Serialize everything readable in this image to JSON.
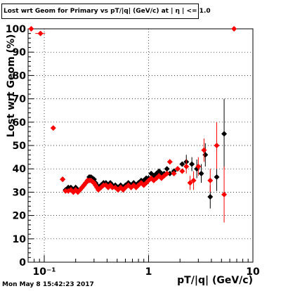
{
  "chart_data": {
    "type": "scatter",
    "title": "Lost wrt Geom for Primary vs pT/|q| (GeV/c) at | η | <= 1.0",
    "xlabel": "pT/|q| (GeV/c)",
    "ylabel": "Lost wrt Geom (%)",
    "x_scale": "log",
    "xlim": [
      0.07,
      10
    ],
    "ylim": [
      0,
      100
    ],
    "x_ticks": [
      0.1,
      1,
      10
    ],
    "x_tick_labels": [
      "10⁻¹",
      "1",
      "10"
    ],
    "y_ticks": [
      0,
      10,
      20,
      30,
      40,
      50,
      60,
      70,
      80,
      90,
      100
    ],
    "y_tick_labels": [
      "0",
      "10",
      "20",
      "30",
      "40",
      "50",
      "60",
      "70",
      "80",
      "90",
      "100"
    ],
    "grid": true,
    "series": [
      {
        "color": "#000000",
        "marker": "diamond",
        "points": [
          {
            "x": 0.15,
            "y": 35.5
          },
          {
            "x": 0.16,
            "y": 31
          },
          {
            "x": 0.17,
            "y": 32
          },
          {
            "x": 0.18,
            "y": 32
          },
          {
            "x": 0.19,
            "y": 31
          },
          {
            "x": 0.2,
            "y": 32
          },
          {
            "x": 0.21,
            "y": 31
          },
          {
            "x": 0.22,
            "y": 31
          },
          {
            "x": 0.23,
            "y": 32
          },
          {
            "x": 0.24,
            "y": 33
          },
          {
            "x": 0.25,
            "y": 34
          },
          {
            "x": 0.26,
            "y": 35
          },
          {
            "x": 0.27,
            "y": 36.5
          },
          {
            "x": 0.28,
            "y": 36.5
          },
          {
            "x": 0.29,
            "y": 36
          },
          {
            "x": 0.3,
            "y": 35.5
          },
          {
            "x": 0.31,
            "y": 34
          },
          {
            "x": 0.32,
            "y": 33
          },
          {
            "x": 0.33,
            "y": 32
          },
          {
            "x": 0.35,
            "y": 33
          },
          {
            "x": 0.37,
            "y": 34
          },
          {
            "x": 0.39,
            "y": 34
          },
          {
            "x": 0.41,
            "y": 33
          },
          {
            "x": 0.43,
            "y": 34
          },
          {
            "x": 0.45,
            "y": 33
          },
          {
            "x": 0.48,
            "y": 33
          },
          {
            "x": 0.51,
            "y": 32
          },
          {
            "x": 0.54,
            "y": 33
          },
          {
            "x": 0.57,
            "y": 32
          },
          {
            "x": 0.6,
            "y": 33
          },
          {
            "x": 0.64,
            "y": 34
          },
          {
            "x": 0.68,
            "y": 33
          },
          {
            "x": 0.72,
            "y": 34
          },
          {
            "x": 0.76,
            "y": 33
          },
          {
            "x": 0.8,
            "y": 34
          },
          {
            "x": 0.85,
            "y": 35
          },
          {
            "x": 0.9,
            "y": 35
          },
          {
            "x": 0.95,
            "y": 36
          },
          {
            "x": 1.0,
            "y": 36
          },
          {
            "x": 1.06,
            "y": 38
          },
          {
            "x": 1.12,
            "y": 37
          },
          {
            "x": 1.19,
            "y": 38
          },
          {
            "x": 1.26,
            "y": 39
          },
          {
            "x": 1.33,
            "y": 38
          },
          {
            "x": 1.41,
            "y": 38
          },
          {
            "x": 1.5,
            "y": 40
          },
          {
            "x": 1.6,
            "y": 38
          },
          {
            "x": 1.75,
            "y": 39
          },
          {
            "x": 1.9,
            "y": 40
          },
          {
            "x": 2.1,
            "y": 42
          },
          {
            "x": 2.3,
            "y": 43,
            "err": 3
          },
          {
            "x": 2.6,
            "y": 42,
            "err": 3
          },
          {
            "x": 2.9,
            "y": 40,
            "err": 4
          },
          {
            "x": 3.2,
            "y": 38,
            "err": 4
          },
          {
            "x": 3.5,
            "y": 46,
            "err": 5
          },
          {
            "x": 3.9,
            "y": 28,
            "err": 5
          },
          {
            "x": 4.5,
            "y": 36.5,
            "err": 6
          },
          {
            "x": 5.3,
            "y": 55,
            "err": 15
          }
        ]
      },
      {
        "color": "#ff0000",
        "marker": "diamond",
        "points": [
          {
            "x": 0.075,
            "y": 100
          },
          {
            "x": 0.092,
            "y": 98,
            "xerr": 0.01
          },
          {
            "x": 0.122,
            "y": 57.5,
            "xerr": 0.007
          },
          {
            "x": 0.15,
            "y": 35.5
          },
          {
            "x": 0.16,
            "y": 30.5
          },
          {
            "x": 0.17,
            "y": 30.5
          },
          {
            "x": 0.18,
            "y": 31
          },
          {
            "x": 0.19,
            "y": 30
          },
          {
            "x": 0.2,
            "y": 31
          },
          {
            "x": 0.21,
            "y": 30
          },
          {
            "x": 0.22,
            "y": 31
          },
          {
            "x": 0.23,
            "y": 32
          },
          {
            "x": 0.24,
            "y": 33
          },
          {
            "x": 0.25,
            "y": 34
          },
          {
            "x": 0.26,
            "y": 35
          },
          {
            "x": 0.27,
            "y": 35
          },
          {
            "x": 0.28,
            "y": 35
          },
          {
            "x": 0.29,
            "y": 34.5
          },
          {
            "x": 0.3,
            "y": 34
          },
          {
            "x": 0.31,
            "y": 33
          },
          {
            "x": 0.32,
            "y": 32
          },
          {
            "x": 0.33,
            "y": 31
          },
          {
            "x": 0.35,
            "y": 32
          },
          {
            "x": 0.37,
            "y": 33
          },
          {
            "x": 0.39,
            "y": 33
          },
          {
            "x": 0.41,
            "y": 32
          },
          {
            "x": 0.43,
            "y": 33
          },
          {
            "x": 0.45,
            "y": 32
          },
          {
            "x": 0.48,
            "y": 32
          },
          {
            "x": 0.51,
            "y": 31
          },
          {
            "x": 0.54,
            "y": 32
          },
          {
            "x": 0.57,
            "y": 31
          },
          {
            "x": 0.6,
            "y": 32
          },
          {
            "x": 0.64,
            "y": 33
          },
          {
            "x": 0.68,
            "y": 32
          },
          {
            "x": 0.72,
            "y": 33
          },
          {
            "x": 0.76,
            "y": 32
          },
          {
            "x": 0.8,
            "y": 33
          },
          {
            "x": 0.85,
            "y": 34
          },
          {
            "x": 0.9,
            "y": 33
          },
          {
            "x": 0.95,
            "y": 34
          },
          {
            "x": 1.0,
            "y": 35
          },
          {
            "x": 1.06,
            "y": 36
          },
          {
            "x": 1.12,
            "y": 35
          },
          {
            "x": 1.19,
            "y": 36
          },
          {
            "x": 1.26,
            "y": 37
          },
          {
            "x": 1.33,
            "y": 36
          },
          {
            "x": 1.41,
            "y": 37
          },
          {
            "x": 1.5,
            "y": 38
          },
          {
            "x": 1.6,
            "y": 43
          },
          {
            "x": 1.75,
            "y": 38
          },
          {
            "x": 1.9,
            "y": 40
          },
          {
            "x": 2.1,
            "y": 39
          },
          {
            "x": 2.3,
            "y": 41,
            "err": 3
          },
          {
            "x": 2.5,
            "y": 34,
            "err": 3
          },
          {
            "x": 2.7,
            "y": 35,
            "err": 4
          },
          {
            "x": 3.0,
            "y": 41,
            "err": 4
          },
          {
            "x": 3.4,
            "y": 48,
            "err": 5
          },
          {
            "x": 3.9,
            "y": 35,
            "err": 5
          },
          {
            "x": 4.5,
            "y": 50,
            "err": 10
          },
          {
            "x": 5.3,
            "y": 29,
            "err": 12
          },
          {
            "x": 6.6,
            "y": 100
          }
        ]
      }
    ]
  },
  "footer": {
    "timestamp": "Mon May  8 15:42:23 2017"
  }
}
